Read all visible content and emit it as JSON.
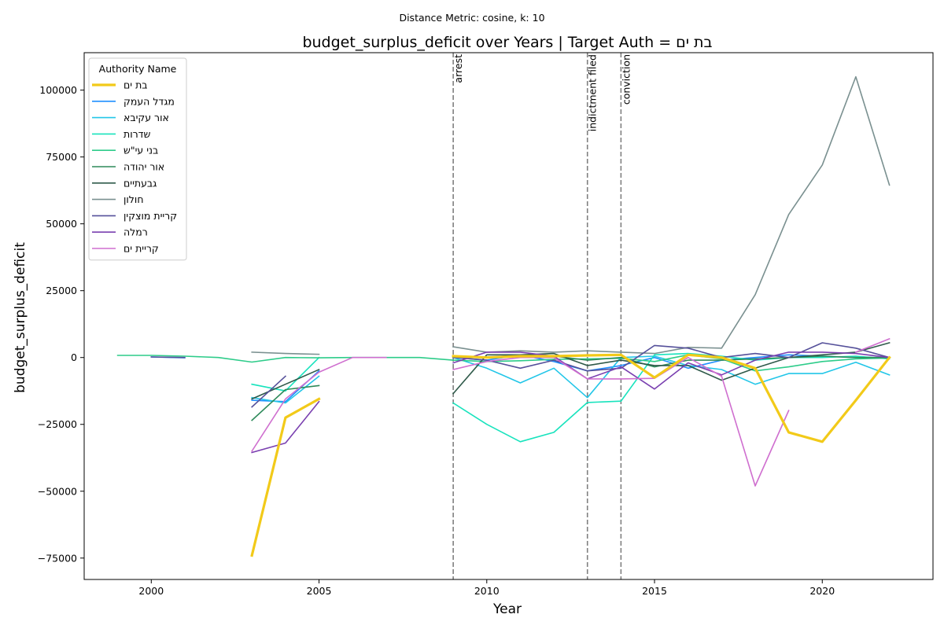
{
  "suptitle": "Distance Metric: cosine, k: 10",
  "chart_data": {
    "type": "line",
    "title": "budget_surplus_deficit over Years | Target Auth = בת ים",
    "xlabel": "Year",
    "ylabel": "budget_surplus_deficit",
    "xlim": [
      1998,
      2023.3
    ],
    "ylim": [
      -83000,
      114000
    ],
    "xticks": [
      2000,
      2005,
      2010,
      2015,
      2020
    ],
    "yticks": [
      -75000,
      -50000,
      -25000,
      0,
      25000,
      50000,
      75000,
      100000
    ],
    "grid": false,
    "legend": {
      "title": "Authority Name",
      "position": "top-left"
    },
    "vlines": [
      {
        "x": 2009,
        "label": "arrest"
      },
      {
        "x": 2013,
        "label": "indictment filed"
      },
      {
        "x": 2014,
        "label": "conviction"
      }
    ],
    "series": [
      {
        "name": "בת ים",
        "color": "#f2ca19",
        "width": 3.2,
        "target": true,
        "segments": [
          [
            [
              2003,
              -74000
            ],
            [
              2004,
              -22500
            ],
            [
              2005,
              -15500
            ]
          ],
          [
            [
              2009,
              500
            ],
            [
              2010,
              0
            ],
            [
              2011,
              500
            ],
            [
              2012,
              500
            ],
            [
              2013,
              800
            ],
            [
              2014,
              1000
            ],
            [
              2015,
              -7500
            ],
            [
              2016,
              1000
            ],
            [
              2017,
              0
            ],
            [
              2018,
              -4000
            ],
            [
              2019,
              -28000
            ],
            [
              2020,
              -31500
            ],
            [
              2021,
              -16000
            ],
            [
              2022,
              0
            ]
          ]
        ]
      },
      {
        "name": "מגדל העמק",
        "color": "#1f8fff",
        "width": 1.6,
        "segments": [
          [
            [
              2000,
              200
            ],
            [
              2001,
              -100
            ]
          ],
          [
            [
              2003,
              -16000
            ],
            [
              2004,
              -16500
            ],
            [
              2005,
              -5000
            ]
          ],
          [
            [
              2009,
              0
            ],
            [
              2010,
              -1000
            ],
            [
              2011,
              1000
            ],
            [
              2012,
              -1500
            ],
            [
              2013,
              -5000
            ],
            [
              2014,
              -3000
            ],
            [
              2015,
              0
            ],
            [
              2016,
              -4000
            ],
            [
              2017,
              -1000
            ],
            [
              2018,
              0
            ],
            [
              2019,
              1000
            ],
            [
              2020,
              500
            ],
            [
              2021,
              0
            ],
            [
              2022,
              0
            ]
          ]
        ]
      },
      {
        "name": "אור עקיבא",
        "color": "#22c6e8",
        "width": 1.6,
        "segments": [
          [
            [
              2003,
              -15000
            ],
            [
              2004,
              -17000
            ],
            [
              2005,
              -7000
            ]
          ],
          [
            [
              2009,
              0
            ],
            [
              2010,
              -4000
            ],
            [
              2011,
              -9500
            ],
            [
              2012,
              -4000
            ],
            [
              2013,
              -15000
            ],
            [
              2014,
              0
            ],
            [
              2015,
              500
            ],
            [
              2016,
              -3000
            ],
            [
              2017,
              -4500
            ],
            [
              2018,
              -10000
            ],
            [
              2019,
              -6000
            ],
            [
              2020,
              -6000
            ],
            [
              2021,
              -1800
            ],
            [
              2022,
              -6500
            ]
          ]
        ]
      },
      {
        "name": "שדרות",
        "color": "#18e3bd",
        "width": 1.6,
        "segments": [
          [
            [
              2003,
              -10000
            ],
            [
              2004,
              -12500
            ],
            [
              2005,
              0
            ]
          ],
          [
            [
              2009,
              -17000
            ],
            [
              2010,
              -25000
            ],
            [
              2011,
              -31500
            ],
            [
              2012,
              -28000
            ],
            [
              2013,
              -16800
            ],
            [
              2014,
              -16300
            ],
            [
              2015,
              1000
            ],
            [
              2016,
              1500
            ],
            [
              2017,
              500
            ],
            [
              2018,
              -1000
            ],
            [
              2019,
              0
            ],
            [
              2020,
              0
            ],
            [
              2021,
              500
            ],
            [
              2022,
              -500
            ]
          ]
        ]
      },
      {
        "name": "בני עי\"ש",
        "color": "#2ecc8a",
        "width": 1.6,
        "segments": [
          [
            [
              1999,
              800
            ],
            [
              2000,
              800
            ],
            [
              2001,
              500
            ],
            [
              2002,
              0
            ],
            [
              2003,
              -1700
            ],
            [
              2004,
              0
            ],
            [
              2005,
              -100
            ],
            [
              2006,
              0
            ],
            [
              2007,
              0
            ],
            [
              2008,
              0
            ],
            [
              2009,
              -1000
            ],
            [
              2010,
              -1500
            ],
            [
              2011,
              -1200
            ],
            [
              2012,
              -700
            ],
            [
              2013,
              -500
            ],
            [
              2014,
              -300
            ],
            [
              2015,
              -1500
            ],
            [
              2016,
              1000
            ],
            [
              2017,
              -500
            ],
            [
              2018,
              -5000
            ],
            [
              2019,
              -3500
            ],
            [
              2020,
              -1500
            ],
            [
              2021,
              -500
            ],
            [
              2022,
              -200
            ]
          ]
        ]
      },
      {
        "name": "אור יהודה",
        "color": "#2e8a5a",
        "width": 1.6,
        "segments": [
          [
            [
              2003,
              -23500
            ],
            [
              2004,
              -12000
            ],
            [
              2005,
              -10500
            ]
          ],
          [
            [
              2009,
              0
            ],
            [
              2010,
              0
            ],
            [
              2011,
              1000
            ],
            [
              2012,
              500
            ],
            [
              2013,
              -1000
            ],
            [
              2014,
              0
            ],
            [
              2015,
              -3500
            ],
            [
              2016,
              -1000
            ],
            [
              2017,
              -1000
            ],
            [
              2018,
              -500
            ],
            [
              2019,
              0
            ],
            [
              2020,
              500
            ],
            [
              2021,
              0
            ],
            [
              2022,
              0
            ]
          ]
        ]
      },
      {
        "name": "גבעתיים",
        "color": "#2f5a4a",
        "width": 1.6,
        "segments": [
          [
            [
              2003,
              -15500
            ],
            [
              2004,
              -10000
            ],
            [
              2005,
              -4500
            ]
          ],
          [
            [
              2009,
              -13500
            ],
            [
              2010,
              1000
            ],
            [
              2011,
              1000
            ],
            [
              2012,
              1500
            ],
            [
              2013,
              -3000
            ],
            [
              2014,
              -1000
            ],
            [
              2015,
              -3000
            ],
            [
              2016,
              -3000
            ],
            [
              2017,
              -8500
            ],
            [
              2018,
              -4000
            ],
            [
              2019,
              0
            ],
            [
              2020,
              1000
            ],
            [
              2021,
              2000
            ],
            [
              2022,
              5500
            ]
          ]
        ]
      },
      {
        "name": "חולון",
        "color": "#7a9090",
        "width": 1.6,
        "segments": [
          [
            [
              2003,
              2000
            ],
            [
              2004,
              1500
            ],
            [
              2005,
              1200
            ]
          ],
          [
            [
              2009,
              4000
            ],
            [
              2010,
              2000
            ],
            [
              2011,
              2500
            ],
            [
              2012,
              2000
            ],
            [
              2013,
              2500
            ],
            [
              2014,
              2000
            ],
            [
              2015,
              1500
            ],
            [
              2016,
              3800
            ],
            [
              2017,
              3500
            ],
            [
              2018,
              23500
            ],
            [
              2019,
              53500
            ],
            [
              2020,
              72000
            ],
            [
              2021,
              105000
            ],
            [
              2022,
              64500
            ]
          ]
        ]
      },
      {
        "name": "קריית מוצקין",
        "color": "#55509a",
        "width": 1.6,
        "segments": [
          [
            [
              2000,
              200
            ],
            [
              2001,
              0
            ]
          ],
          [
            [
              2003,
              -18500
            ],
            [
              2004,
              -7000
            ]
          ],
          [
            [
              2009,
              0
            ],
            [
              2010,
              -1000
            ],
            [
              2011,
              -4000
            ],
            [
              2012,
              -1000
            ],
            [
              2013,
              -5000
            ],
            [
              2014,
              -4000
            ],
            [
              2015,
              4500
            ],
            [
              2016,
              3500
            ],
            [
              2017,
              0
            ],
            [
              2018,
              1500
            ],
            [
              2019,
              0
            ],
            [
              2020,
              5500
            ],
            [
              2021,
              3500
            ],
            [
              2022,
              0
            ]
          ]
        ]
      },
      {
        "name": "רמלה",
        "color": "#7a40b0",
        "width": 1.6,
        "segments": [
          [
            [
              2003,
              -35500
            ],
            [
              2004,
              -32000
            ],
            [
              2005,
              -16500
            ]
          ],
          [
            [
              2009,
              -2000
            ],
            [
              2010,
              2000
            ],
            [
              2011,
              2000
            ],
            [
              2012,
              500
            ],
            [
              2013,
              -8000
            ],
            [
              2014,
              -3500
            ],
            [
              2015,
              -11800
            ],
            [
              2016,
              -2000
            ],
            [
              2017,
              -6500
            ],
            [
              2018,
              -1000
            ],
            [
              2019,
              2000
            ],
            [
              2020,
              2000
            ],
            [
              2021,
              1500
            ],
            [
              2022,
              0
            ]
          ]
        ]
      },
      {
        "name": "קריית ים",
        "color": "#cf6fcf",
        "width": 1.6,
        "segments": [
          [
            [
              2003,
              -35000
            ],
            [
              2004,
              -15500
            ],
            [
              2005,
              -5500
            ],
            [
              2006,
              0
            ],
            [
              2007,
              0
            ]
          ],
          [
            [
              2009,
              -4500
            ],
            [
              2010,
              -1500
            ],
            [
              2011,
              0
            ],
            [
              2012,
              0
            ],
            [
              2013,
              -8000
            ],
            [
              2014,
              -8000
            ],
            [
              2015,
              -7800
            ],
            [
              2016,
              0
            ],
            [
              2017,
              -7000
            ],
            [
              2018,
              -48000
            ],
            [
              2019,
              -19800
            ]
          ],
          [
            [
              2021,
              2000
            ],
            [
              2022,
              7000
            ]
          ]
        ]
      }
    ]
  }
}
